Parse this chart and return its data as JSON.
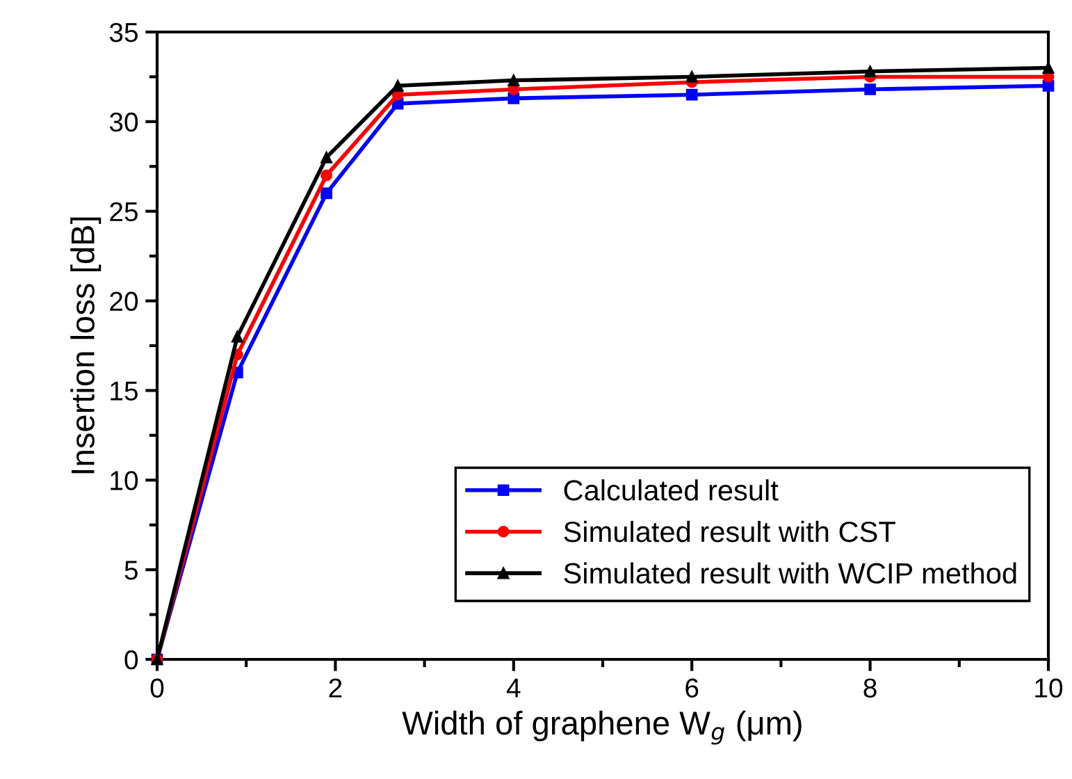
{
  "chart_data": {
    "type": "line",
    "xlabel": "Width of graphene W$_{g}$ (μm)",
    "ylabel": "Insertion loss [dB]",
    "x": [
      0,
      0.9,
      1.9,
      2.7,
      4,
      6,
      8,
      10
    ],
    "series": [
      {
        "name": "Calculated result",
        "color": "#0000ff",
        "marker": "square",
        "values": [
          0,
          16,
          26,
          31,
          31.3,
          31.5,
          31.8,
          32
        ]
      },
      {
        "name": "Simulated result with CST",
        "color": "#ff0000",
        "marker": "circle",
        "values": [
          0,
          17,
          27,
          31.5,
          31.8,
          32.2,
          32.5,
          32.5
        ]
      },
      {
        "name": "Simulated result with WCIP method",
        "color": "#000000",
        "marker": "triangle",
        "values": [
          0,
          18,
          28,
          32,
          32.3,
          32.5,
          32.8,
          33
        ]
      }
    ],
    "xlim": [
      0,
      10
    ],
    "ylim": [
      0,
      35
    ],
    "xticks": [
      0,
      2,
      4,
      6,
      8,
      10
    ],
    "yticks": [
      0,
      5,
      10,
      15,
      20,
      25,
      30,
      35
    ],
    "grid": false,
    "legend": "bottom right",
    "line_style": "solid"
  }
}
